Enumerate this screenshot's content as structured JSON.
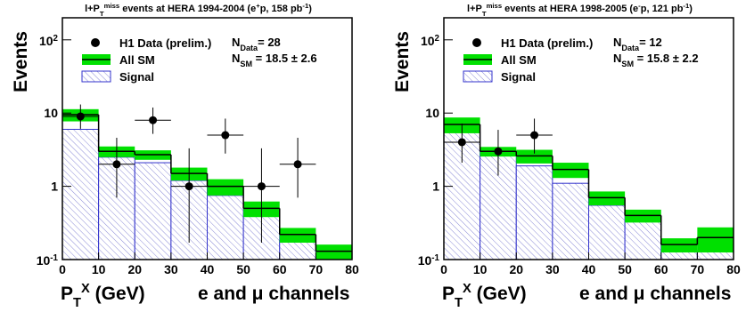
{
  "chart_data": [
    {
      "type": "histogram",
      "title": [
        {
          "text": "l+P"
        },
        {
          "text": "T",
          "sub": true
        },
        {
          "text": "miss",
          "sup": true
        },
        {
          "text": " events at HERA 1994-2004 (e"
        },
        {
          "text": "+",
          "sup": true
        },
        {
          "text": "p, 158 pb"
        },
        {
          "text": "-1",
          "sup": true
        },
        {
          "text": ")"
        }
      ],
      "ylabel": "Events",
      "xlabel": [
        {
          "text": "P"
        },
        {
          "text": "T",
          "sub": true
        },
        {
          "text": "X",
          "sup": true
        },
        {
          "text": " (GeV)"
        }
      ],
      "channel_label": "e and μ channels",
      "log_y": true,
      "bins": [
        0,
        10,
        20,
        30,
        40,
        50,
        60,
        70,
        80
      ],
      "xlim": [
        0,
        80
      ],
      "xticks": [
        0,
        10,
        20,
        30,
        40,
        50,
        60,
        70,
        80
      ],
      "ylim": [
        0.1,
        200
      ],
      "yticks": [
        {
          "value": 0.1,
          "label": "10",
          "exp": "-1"
        },
        1,
        10,
        {
          "value": 100,
          "label": "10",
          "exp": "2"
        }
      ],
      "stats": [
        [
          {
            "text": "N"
          },
          {
            "text": "Data",
            "sub": true
          },
          {
            "text": "= 28"
          }
        ],
        [
          {
            "text": "N"
          },
          {
            "text": "SM",
            "sub": true
          },
          {
            "text": "  = 18.5 ± 2.6"
          }
        ]
      ],
      "series": [
        {
          "name": "H1 Data (prelim.)",
          "color": "#000000",
          "x": [
            5,
            15,
            25,
            35,
            45,
            55,
            65
          ],
          "values": [
            9,
            2,
            8,
            1,
            5,
            1,
            2
          ],
          "err_low": [
            2.9,
            1.3,
            2.8,
            0.83,
            2.2,
            0.83,
            1.3
          ],
          "err_high": [
            4.1,
            2.6,
            3.9,
            2.3,
            3.4,
            2.3,
            2.6
          ]
        },
        {
          "name": "All SM",
          "color": "#00e000",
          "values": [
            9.5,
            3.0,
            2.7,
            1.5,
            1.0,
            0.5,
            0.22,
            0.13
          ],
          "error": [
            1.8,
            0.5,
            0.4,
            0.3,
            0.25,
            0.12,
            0.05,
            0.03
          ]
        },
        {
          "name": "Signal",
          "color": "#3333cc",
          "values": [
            6,
            2.5,
            2.1,
            1.2,
            0.75,
            0.42,
            0.18,
            0.11
          ]
        }
      ]
    },
    {
      "type": "histogram",
      "title": [
        {
          "text": "l+P"
        },
        {
          "text": "T",
          "sub": true
        },
        {
          "text": "miss",
          "sup": true
        },
        {
          "text": " events at HERA 1998-2005 (e"
        },
        {
          "text": "-",
          "sup": true
        },
        {
          "text": "p, 121 pb"
        },
        {
          "text": "-1",
          "sup": true
        },
        {
          "text": ")"
        }
      ],
      "ylabel": "Events",
      "xlabel": [
        {
          "text": "P"
        },
        {
          "text": "T",
          "sub": true
        },
        {
          "text": "X",
          "sup": true
        },
        {
          "text": " (GeV)"
        }
      ],
      "channel_label": "e and μ channels",
      "log_y": true,
      "bins": [
        0,
        10,
        20,
        30,
        40,
        50,
        60,
        70,
        80
      ],
      "xlim": [
        0,
        80
      ],
      "xticks": [
        0,
        10,
        20,
        30,
        40,
        50,
        60,
        70,
        80
      ],
      "ylim": [
        0.1,
        200
      ],
      "yticks": [
        {
          "value": 0.1,
          "label": "10",
          "exp": "-1"
        },
        1,
        10,
        {
          "value": 100,
          "label": "10",
          "exp": "2"
        }
      ],
      "stats": [
        [
          {
            "text": "N"
          },
          {
            "text": "Data",
            "sub": true
          },
          {
            "text": "= 12"
          }
        ],
        [
          {
            "text": "N"
          },
          {
            "text": "SM",
            "sub": true
          },
          {
            "text": "  = 15.8 ± 2.2"
          }
        ]
      ],
      "series": [
        {
          "name": "H1 Data (prelim.)",
          "color": "#000000",
          "x": [
            5,
            15,
            25
          ],
          "values": [
            4,
            3,
            5
          ],
          "err_low": [
            1.9,
            1.6,
            2.2
          ],
          "err_high": [
            3.2,
            2.9,
            3.4
          ]
        },
        {
          "name": "All SM",
          "color": "#00e000",
          "values": [
            7,
            3.0,
            2.6,
            1.7,
            0.7,
            0.4,
            0.16,
            0.2
          ],
          "error": [
            1.7,
            0.45,
            0.55,
            0.4,
            0.15,
            0.08,
            0.035,
            0.075
          ]
        },
        {
          "name": "Signal",
          "color": "#3333cc",
          "values": [
            5.5,
            2.6,
            1.9,
            1.1,
            0.55,
            0.33,
            0.13,
            0.13
          ]
        }
      ]
    }
  ]
}
